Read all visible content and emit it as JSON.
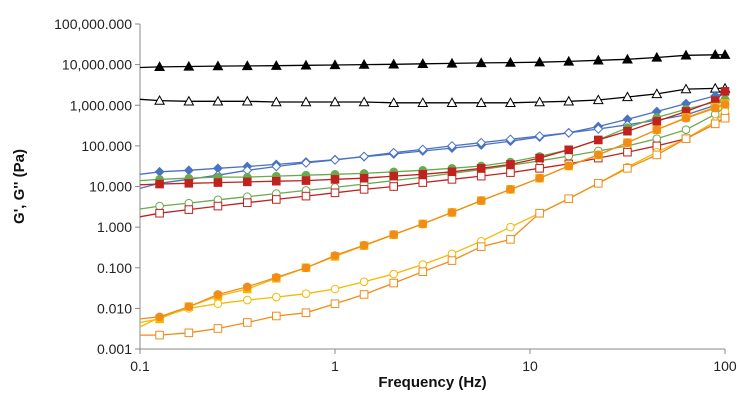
{
  "chart_data": {
    "type": "line",
    "xlabel": "Frequency (Hz)",
    "ylabel": "G', G'' (Pa)",
    "x_scale": "log",
    "y_scale": "log",
    "xlim": [
      0.1,
      100
    ],
    "ylim": [
      0.001,
      100000
    ],
    "x_ticks": [
      0.1,
      1,
      10,
      100
    ],
    "x_tick_labels": [
      "0.1",
      "1",
      "10",
      "100"
    ],
    "y_ticks": [
      0.001,
      0.01,
      0.1,
      1,
      10,
      100,
      1000,
      10000,
      100000
    ],
    "y_tick_labels": [
      "0.001",
      "0.010",
      "0.100",
      "1.000",
      "10.000",
      "100.000",
      "1,000.000",
      "10,000.000",
      "100,000.000"
    ],
    "grid": false,
    "legend": "none",
    "series": [
      {
        "marker": "triangle",
        "filled": true,
        "color": "#000000",
        "line_color": "#000000",
        "x": [
          0.1,
          0.126,
          0.178,
          0.251,
          0.355,
          0.5,
          0.71,
          1.0,
          1.41,
          2.0,
          2.82,
          3.98,
          5.62,
          7.94,
          11.2,
          15.8,
          22.4,
          31.6,
          44.7,
          63.1,
          89.1,
          100
        ],
        "y": [
          8500,
          8800,
          9000,
          9200,
          9300,
          9400,
          9600,
          9800,
          10000,
          10200,
          10500,
          10700,
          11000,
          11200,
          11500,
          12000,
          12800,
          13500,
          15000,
          17000,
          17500,
          17500
        ]
      },
      {
        "marker": "triangle",
        "filled": false,
        "color": "#000000",
        "line_color": "#000000",
        "x": [
          0.1,
          0.126,
          0.178,
          0.251,
          0.355,
          0.5,
          0.71,
          1.0,
          1.41,
          2.0,
          2.82,
          3.98,
          5.62,
          7.94,
          11.2,
          15.8,
          22.4,
          31.6,
          44.7,
          63.1,
          89.1,
          100
        ],
        "y": [
          1400,
          1300,
          1250,
          1250,
          1250,
          1200,
          1200,
          1200,
          1200,
          1150,
          1150,
          1150,
          1150,
          1150,
          1200,
          1250,
          1350,
          1600,
          1900,
          2500,
          2600,
          2600
        ]
      },
      {
        "marker": "diamond",
        "filled": true,
        "color": "#4a72c4",
        "line_color": "#4a72c4",
        "x": [
          0.1,
          0.126,
          0.178,
          0.251,
          0.355,
          0.5,
          0.71,
          1.0,
          1.41,
          2.0,
          2.82,
          3.98,
          5.62,
          7.94,
          11.2,
          15.8,
          22.4,
          31.6,
          44.7,
          63.1,
          89.1,
          100
        ],
        "y": [
          20,
          23,
          25,
          28,
          31,
          35,
          40,
          46,
          54,
          63,
          75,
          88,
          105,
          130,
          165,
          210,
          300,
          450,
          700,
          1100,
          1700,
          2000
        ]
      },
      {
        "marker": "diamond",
        "filled": false,
        "color": "#4a72c4",
        "line_color": "#4a72c4",
        "x": [
          0.1,
          0.126,
          0.178,
          0.251,
          0.355,
          0.5,
          0.71,
          1.0,
          1.41,
          2.0,
          2.82,
          3.98,
          5.62,
          7.94,
          11.2,
          15.8,
          22.4,
          31.6,
          44.7,
          63.1,
          89.1,
          100
        ],
        "y": [
          9,
          12,
          15,
          19,
          25,
          31,
          38,
          45,
          55,
          68,
          82,
          100,
          120,
          145,
          175,
          210,
          260,
          330,
          430,
          580,
          1000,
          1400
        ]
      },
      {
        "marker": "circle",
        "filled": true,
        "color": "#6aaa4e",
        "line_color": "#6aaa4e",
        "x": [
          0.1,
          0.126,
          0.178,
          0.251,
          0.355,
          0.5,
          0.71,
          1.0,
          1.41,
          2.0,
          2.82,
          3.98,
          5.62,
          7.94,
          11.2,
          15.8,
          22.4,
          31.6,
          44.7,
          63.1,
          89.1,
          100
        ],
        "y": [
          14,
          15,
          16,
          17,
          17,
          18,
          19,
          20,
          21,
          23,
          25,
          28,
          32,
          40,
          55,
          80,
          140,
          280,
          500,
          800,
          1200,
          1400
        ]
      },
      {
        "marker": "circle",
        "filled": false,
        "color": "#6aaa4e",
        "line_color": "#6aaa4e",
        "x": [
          0.1,
          0.126,
          0.178,
          0.251,
          0.355,
          0.5,
          0.71,
          1.0,
          1.41,
          2.0,
          2.82,
          3.98,
          5.62,
          7.94,
          11.2,
          15.8,
          22.4,
          31.6,
          44.7,
          63.1,
          89.1,
          100
        ],
        "y": [
          2.8,
          3.3,
          3.9,
          4.7,
          5.6,
          6.7,
          8.0,
          9.5,
          11.5,
          14,
          17,
          21,
          26,
          33,
          43,
          56,
          75,
          100,
          150,
          250,
          600,
          900
        ]
      },
      {
        "marker": "square",
        "filled": true,
        "color": "#c0221f",
        "line_color": "#c0221f",
        "x": [
          0.1,
          0.126,
          0.178,
          0.251,
          0.355,
          0.5,
          0.71,
          1.0,
          1.41,
          2.0,
          2.82,
          3.98,
          5.62,
          7.94,
          11.2,
          15.8,
          22.4,
          31.6,
          44.7,
          63.1,
          89.1,
          100
        ],
        "y": [
          11,
          11.5,
          12,
          12.5,
          13,
          13.5,
          14,
          15,
          16,
          18,
          20,
          23,
          28,
          35,
          50,
          80,
          140,
          230,
          400,
          700,
          1300,
          2200
        ]
      },
      {
        "marker": "square",
        "filled": false,
        "color": "#c0221f",
        "line_color": "#c0221f",
        "x": [
          0.1,
          0.126,
          0.178,
          0.251,
          0.355,
          0.5,
          0.71,
          1.0,
          1.41,
          2.0,
          2.82,
          3.98,
          5.62,
          7.94,
          11.2,
          15.8,
          22.4,
          31.6,
          44.7,
          63.1,
          89.1,
          100
        ],
        "y": [
          1.8,
          2.2,
          2.7,
          3.3,
          4.0,
          4.8,
          5.8,
          7.0,
          8.5,
          10,
          12.5,
          15,
          18,
          22,
          28,
          36,
          50,
          70,
          100,
          150,
          350,
          500
        ]
      },
      {
        "marker": "square",
        "filled": true,
        "color": "#f5b800",
        "line_color": "#f5b800",
        "x": [
          0.1,
          0.126,
          0.178,
          0.251,
          0.355,
          0.5,
          0.71,
          1.0,
          1.41,
          2.0,
          2.82,
          3.98,
          5.62,
          7.94,
          11.2,
          15.8,
          22.4,
          31.6,
          44.7,
          63.1,
          89.1,
          100
        ],
        "y": [
          0.0045,
          0.0055,
          0.011,
          0.02,
          0.03,
          0.055,
          0.1,
          0.19,
          0.35,
          0.65,
          1.2,
          2.3,
          4.5,
          8.5,
          16,
          32,
          60,
          120,
          250,
          500,
          900,
          1100
        ]
      },
      {
        "marker": "circle",
        "filled": false,
        "color": "#f5b800",
        "line_color": "#f5b800",
        "x": [
          0.1,
          0.126,
          0.178,
          0.251,
          0.355,
          0.5,
          0.71,
          1.0,
          1.41,
          2.0,
          2.82,
          3.98,
          5.62,
          7.94,
          11.2,
          15.8,
          22.4,
          31.6,
          44.7,
          63.1,
          89.1,
          100
        ],
        "y": [
          0.0035,
          0.006,
          0.01,
          0.013,
          0.016,
          0.019,
          0.023,
          0.03,
          0.045,
          0.07,
          0.12,
          0.22,
          0.45,
          1.0,
          2.2,
          5,
          12,
          30,
          70,
          150,
          400,
          700
        ]
      },
      {
        "marker": "circle",
        "filled": true,
        "color": "#f08c1a",
        "line_color": "#f08c1a",
        "x": [
          0.1,
          0.126,
          0.178,
          0.251,
          0.355,
          0.5,
          0.71,
          1.0,
          1.41,
          2.0,
          2.82,
          3.98,
          5.62,
          7.94,
          11.2,
          15.8,
          22.4,
          31.6,
          44.7,
          63.1,
          89.1,
          100
        ],
        "y": [
          0.0055,
          0.0062,
          0.011,
          0.022,
          0.034,
          0.058,
          0.1,
          0.2,
          0.36,
          0.66,
          1.2,
          2.3,
          4.5,
          8.5,
          16,
          32,
          60,
          120,
          250,
          480,
          850,
          1050
        ]
      },
      {
        "marker": "square",
        "filled": false,
        "color": "#f08c1a",
        "line_color": "#f08c1a",
        "x": [
          0.1,
          0.126,
          0.178,
          0.251,
          0.355,
          0.5,
          0.71,
          1.0,
          1.41,
          2.0,
          2.82,
          3.98,
          5.62,
          7.94,
          11.2,
          15.8,
          22.4,
          31.6,
          44.7,
          63.1,
          89.1,
          100
        ],
        "y": [
          0.0022,
          0.0022,
          0.0025,
          0.0032,
          0.0045,
          0.0065,
          0.0078,
          0.013,
          0.022,
          0.042,
          0.08,
          0.15,
          0.33,
          0.5,
          2.2,
          5,
          12,
          28,
          60,
          150,
          350,
          480
        ]
      }
    ]
  }
}
